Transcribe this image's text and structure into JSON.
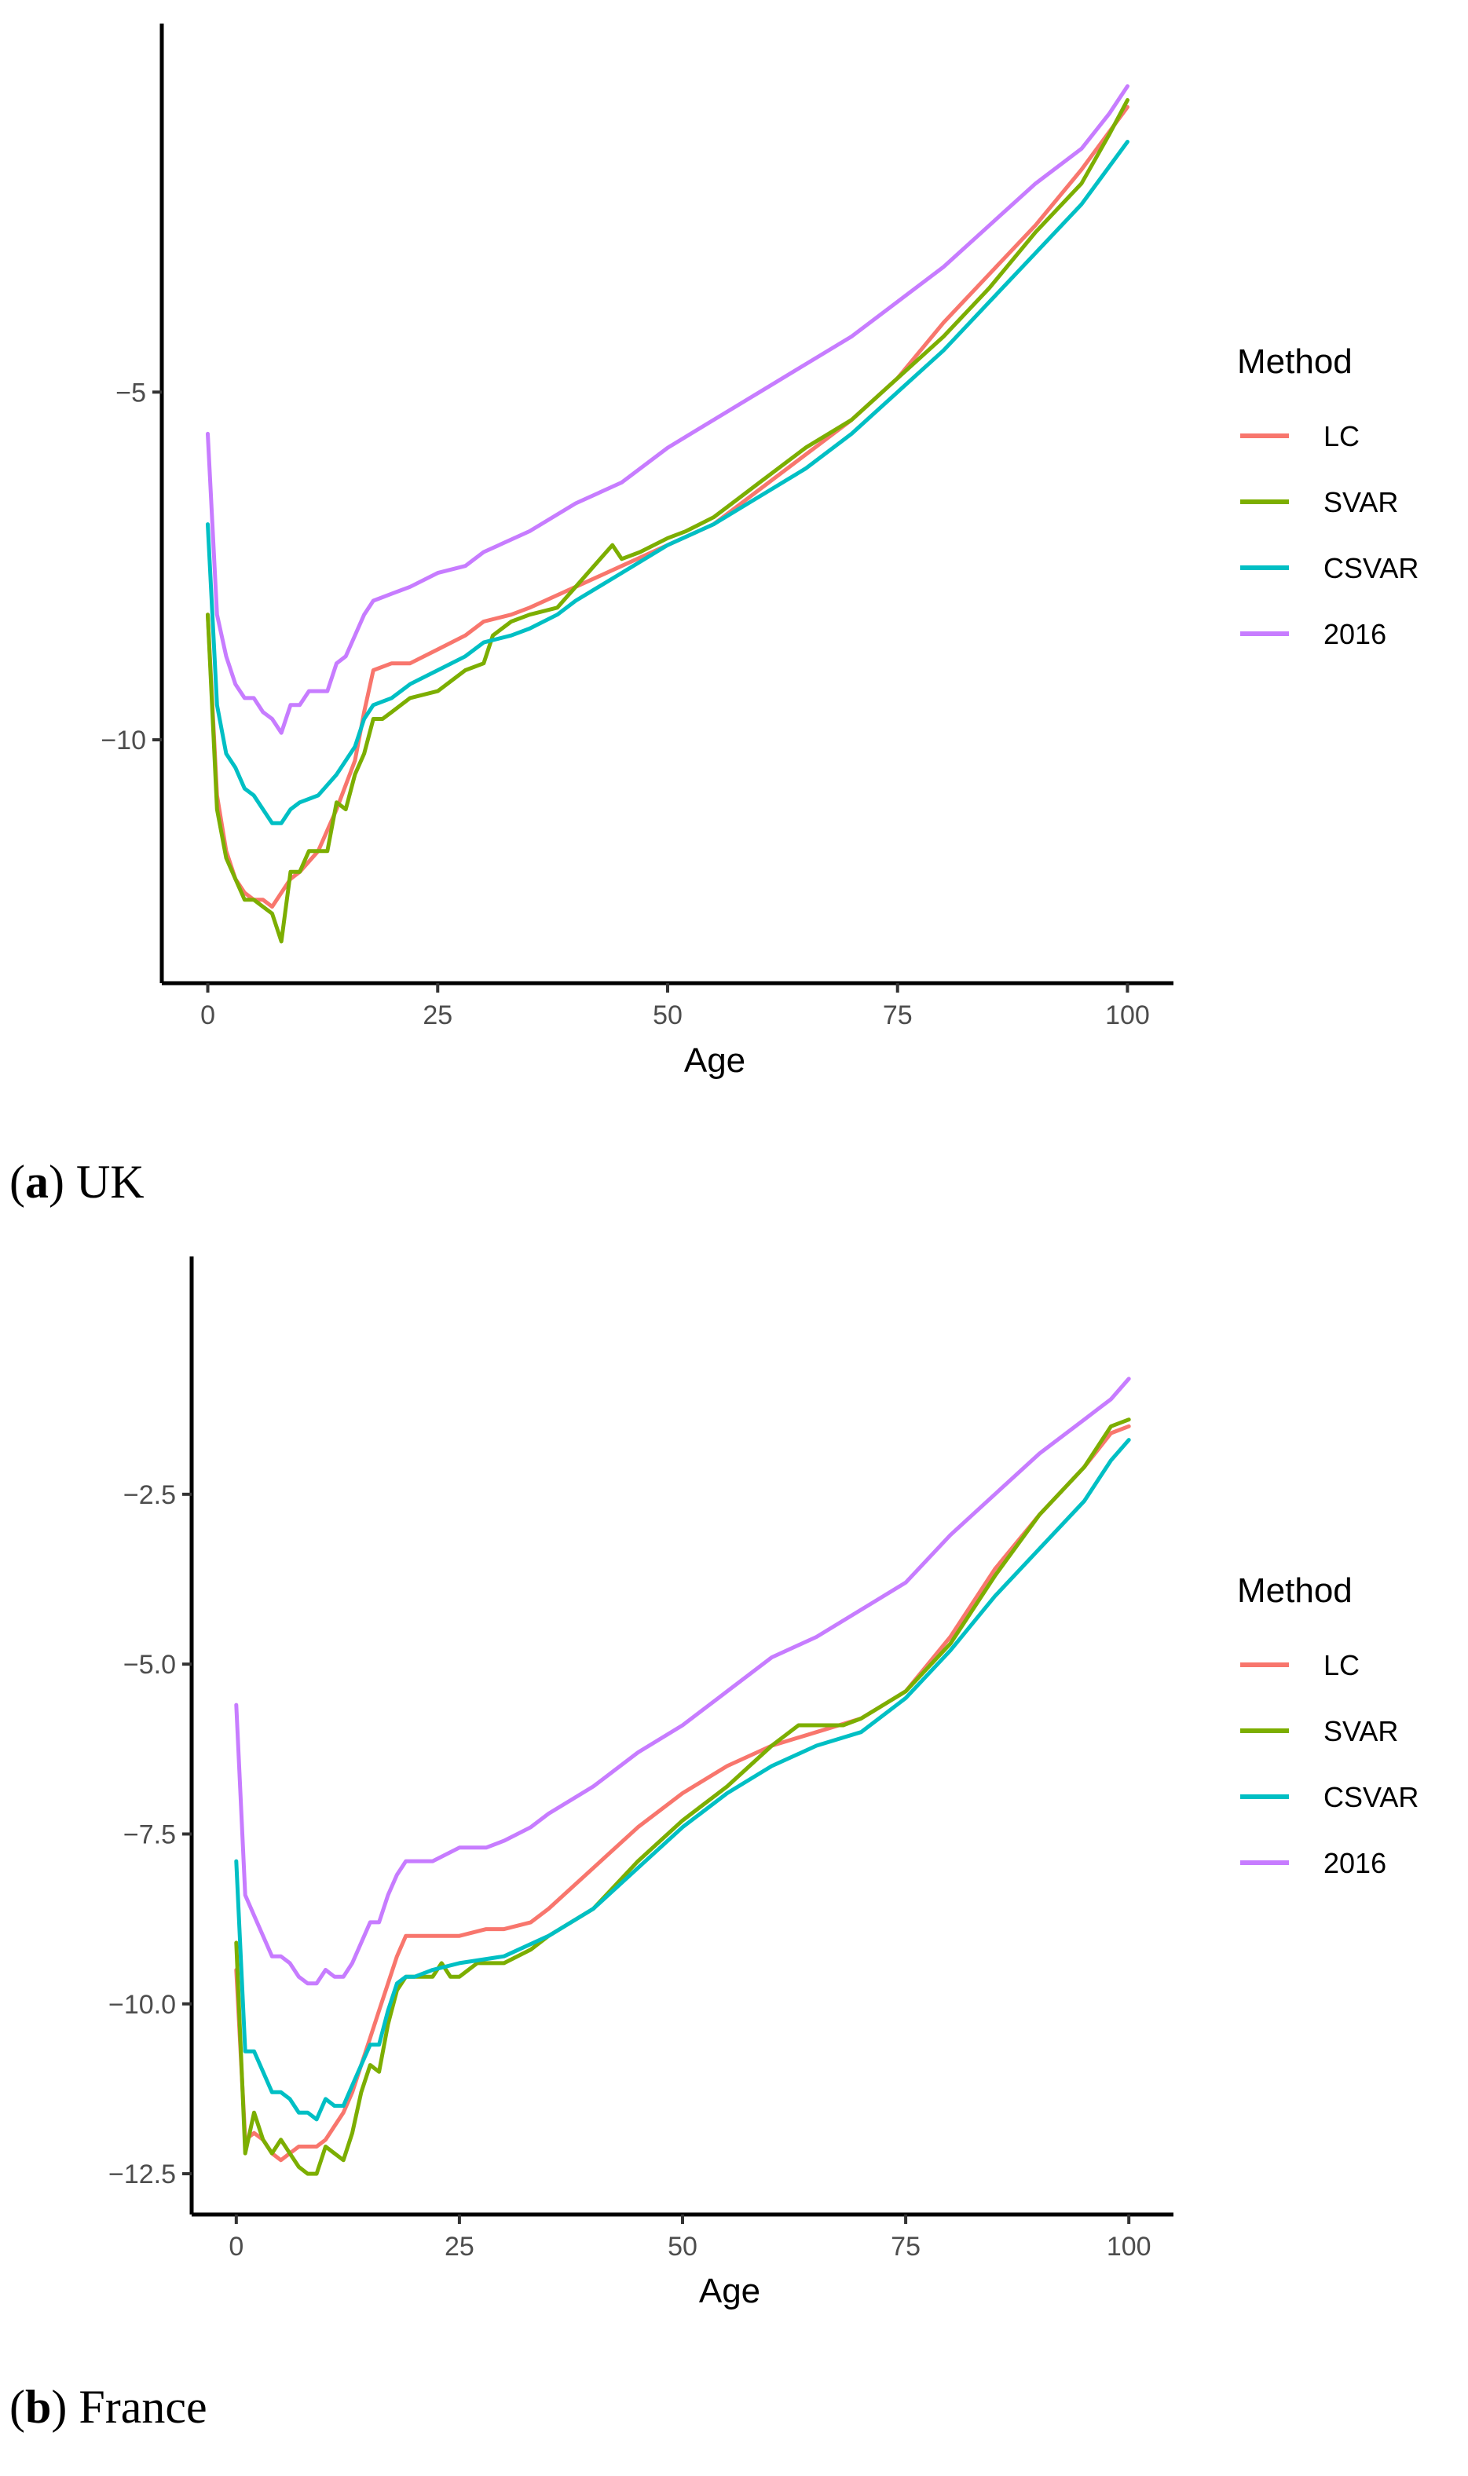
{
  "chart_data": [
    {
      "type": "line",
      "caption_letter": "a",
      "caption_text": "UK",
      "xlabel": "Age",
      "ylabel": "",
      "xlim": [
        -5,
        105
      ],
      "ylim": [
        -13.5,
        0.3
      ],
      "xticks": [
        0,
        25,
        50,
        75,
        100
      ],
      "xtick_labels": [
        "0",
        "25",
        "50",
        "75",
        "100"
      ],
      "yticks": [
        -5,
        -10
      ],
      "ytick_labels": [
        "−5",
        "−10"
      ],
      "grid": false,
      "legend_title": "Method",
      "legend_position": "right",
      "series": [
        {
          "name": "LC",
          "color": "#F8766D",
          "x": [
            0,
            1,
            2,
            3,
            4,
            5,
            6,
            7,
            8,
            9,
            10,
            12,
            14,
            16,
            17,
            18,
            20,
            22,
            25,
            28,
            30,
            33,
            35,
            40,
            45,
            50,
            55,
            60,
            65,
            70,
            75,
            80,
            85,
            90,
            95,
            100
          ],
          "y": [
            -8.2,
            -10.8,
            -11.6,
            -12.0,
            -12.2,
            -12.3,
            -12.3,
            -12.4,
            -12.2,
            -12.0,
            -11.9,
            -11.6,
            -11.0,
            -10.3,
            -9.6,
            -9.0,
            -8.9,
            -8.9,
            -8.7,
            -8.5,
            -8.3,
            -8.2,
            -8.1,
            -7.8,
            -7.5,
            -7.2,
            -6.9,
            -6.4,
            -5.9,
            -5.4,
            -4.8,
            -4.0,
            -3.3,
            -2.6,
            -1.8,
            -0.9
          ]
        },
        {
          "name": "SVAR",
          "color": "#7CAE00",
          "x": [
            0,
            1,
            2,
            3,
            4,
            5,
            6,
            7,
            8,
            9,
            10,
            11,
            12,
            13,
            14,
            15,
            16,
            17,
            18,
            19,
            20,
            22,
            25,
            28,
            30,
            31,
            33,
            35,
            38,
            40,
            42,
            44,
            45,
            47,
            50,
            52,
            55,
            57,
            60,
            65,
            70,
            75,
            80,
            85,
            90,
            95,
            98,
            100
          ],
          "y": [
            -8.2,
            -11.0,
            -11.7,
            -12.0,
            -12.3,
            -12.3,
            -12.4,
            -12.5,
            -12.9,
            -11.9,
            -11.9,
            -11.6,
            -11.6,
            -11.6,
            -10.9,
            -11.0,
            -10.5,
            -10.2,
            -9.7,
            -9.7,
            -9.6,
            -9.4,
            -9.3,
            -9.0,
            -8.9,
            -8.5,
            -8.3,
            -8.2,
            -8.1,
            -7.8,
            -7.5,
            -7.2,
            -7.4,
            -7.3,
            -7.1,
            -7.0,
            -6.8,
            -6.6,
            -6.3,
            -5.8,
            -5.4,
            -4.8,
            -4.2,
            -3.5,
            -2.7,
            -2.0,
            -1.3,
            -0.8
          ]
        },
        {
          "name": "CSVAR",
          "color": "#00BFC4",
          "x": [
            0,
            1,
            2,
            3,
            4,
            5,
            6,
            7,
            8,
            9,
            10,
            12,
            14,
            16,
            17,
            18,
            20,
            22,
            25,
            28,
            30,
            33,
            35,
            38,
            40,
            45,
            50,
            55,
            60,
            65,
            70,
            75,
            80,
            85,
            90,
            95,
            100
          ],
          "y": [
            -6.9,
            -9.5,
            -10.2,
            -10.4,
            -10.7,
            -10.8,
            -11.0,
            -11.2,
            -11.2,
            -11.0,
            -10.9,
            -10.8,
            -10.5,
            -10.1,
            -9.7,
            -9.5,
            -9.4,
            -9.2,
            -9.0,
            -8.8,
            -8.6,
            -8.5,
            -8.4,
            -8.2,
            -8.0,
            -7.6,
            -7.2,
            -6.9,
            -6.5,
            -6.1,
            -5.6,
            -5.0,
            -4.4,
            -3.7,
            -3.0,
            -2.3,
            -1.4
          ]
        },
        {
          "name": "2016",
          "color": "#C77CFF",
          "x": [
            0,
            1,
            2,
            3,
            4,
            5,
            6,
            7,
            8,
            9,
            10,
            11,
            12,
            13,
            14,
            15,
            16,
            17,
            18,
            20,
            22,
            25,
            28,
            30,
            35,
            40,
            45,
            50,
            55,
            60,
            65,
            70,
            75,
            80,
            85,
            90,
            95,
            98,
            100
          ],
          "y": [
            -5.6,
            -8.2,
            -8.8,
            -9.2,
            -9.4,
            -9.4,
            -9.6,
            -9.7,
            -9.9,
            -9.5,
            -9.5,
            -9.3,
            -9.3,
            -9.3,
            -8.9,
            -8.8,
            -8.5,
            -8.2,
            -8.0,
            -7.9,
            -7.8,
            -7.6,
            -7.5,
            -7.3,
            -7.0,
            -6.6,
            -6.3,
            -5.8,
            -5.4,
            -5.0,
            -4.6,
            -4.2,
            -3.7,
            -3.2,
            -2.6,
            -2.0,
            -1.5,
            -1.0,
            -0.6
          ]
        }
      ]
    },
    {
      "type": "line",
      "caption_letter": "b",
      "caption_text": "France",
      "xlabel": "Age",
      "ylabel": "",
      "xlim": [
        -5,
        105
      ],
      "ylim": [
        -13.1,
        1.0
      ],
      "xticks": [
        0,
        25,
        50,
        75,
        100
      ],
      "xtick_labels": [
        "0",
        "25",
        "50",
        "75",
        "100"
      ],
      "yticks": [
        -2.5,
        -5.0,
        -7.5,
        -10.0,
        -12.5
      ],
      "ytick_labels": [
        "−2.5",
        "−5.0",
        "−7.5",
        "−10.0",
        "−12.5"
      ],
      "grid": false,
      "legend_title": "Method",
      "legend_position": "right",
      "series": [
        {
          "name": "LC",
          "color": "#F8766D",
          "x": [
            0,
            1,
            2,
            3,
            4,
            5,
            6,
            7,
            8,
            9,
            10,
            11,
            12,
            13,
            14,
            15,
            16,
            17,
            18,
            19,
            20,
            22,
            25,
            28,
            30,
            33,
            35,
            40,
            45,
            50,
            55,
            60,
            65,
            70,
            75,
            80,
            85,
            90,
            95,
            98,
            100
          ],
          "y": [
            -9.5,
            -12.0,
            -11.9,
            -12.0,
            -12.2,
            -12.3,
            -12.2,
            -12.1,
            -12.1,
            -12.1,
            -12.0,
            -11.8,
            -11.6,
            -11.3,
            -10.9,
            -10.5,
            -10.1,
            -9.7,
            -9.3,
            -9.0,
            -9.0,
            -9.0,
            -9.0,
            -8.9,
            -8.9,
            -8.8,
            -8.6,
            -8.0,
            -7.4,
            -6.9,
            -6.5,
            -6.2,
            -6.0,
            -5.8,
            -5.4,
            -4.6,
            -3.6,
            -2.8,
            -2.1,
            -1.6,
            -1.5
          ]
        },
        {
          "name": "SVAR",
          "color": "#7CAE00",
          "x": [
            0,
            1,
            2,
            3,
            4,
            5,
            6,
            7,
            8,
            9,
            10,
            11,
            12,
            13,
            14,
            15,
            16,
            17,
            18,
            19,
            20,
            22,
            23,
            24,
            25,
            27,
            30,
            33,
            35,
            40,
            45,
            50,
            55,
            60,
            63,
            65,
            68,
            70,
            75,
            80,
            85,
            90,
            95,
            98,
            100
          ],
          "y": [
            -9.1,
            -12.2,
            -11.6,
            -12.0,
            -12.2,
            -12.0,
            -12.2,
            -12.4,
            -12.5,
            -12.5,
            -12.1,
            -12.2,
            -12.3,
            -11.9,
            -11.3,
            -10.9,
            -11.0,
            -10.3,
            -9.8,
            -9.6,
            -9.6,
            -9.6,
            -9.4,
            -9.6,
            -9.6,
            -9.4,
            -9.4,
            -9.2,
            -9.0,
            -8.6,
            -7.9,
            -7.3,
            -6.8,
            -6.2,
            -5.9,
            -5.9,
            -5.9,
            -5.8,
            -5.4,
            -4.7,
            -3.7,
            -2.8,
            -2.1,
            -1.5,
            -1.4
          ]
        },
        {
          "name": "CSVAR",
          "color": "#00BFC4",
          "x": [
            0,
            1,
            2,
            3,
            4,
            5,
            6,
            7,
            8,
            9,
            10,
            11,
            12,
            13,
            14,
            15,
            16,
            17,
            18,
            19,
            20,
            22,
            25,
            30,
            35,
            40,
            45,
            50,
            55,
            60,
            65,
            70,
            75,
            80,
            85,
            90,
            95,
            98,
            100
          ],
          "y": [
            -7.9,
            -10.7,
            -10.7,
            -11.0,
            -11.3,
            -11.3,
            -11.4,
            -11.6,
            -11.6,
            -11.7,
            -11.4,
            -11.5,
            -11.5,
            -11.2,
            -10.9,
            -10.6,
            -10.6,
            -10.1,
            -9.7,
            -9.6,
            -9.6,
            -9.5,
            -9.4,
            -9.3,
            -9.0,
            -8.6,
            -8.0,
            -7.4,
            -6.9,
            -6.5,
            -6.2,
            -6.0,
            -5.5,
            -4.8,
            -4.0,
            -3.3,
            -2.6,
            -2.0,
            -1.7
          ]
        },
        {
          "name": "2016",
          "color": "#C77CFF",
          "x": [
            0,
            1,
            2,
            3,
            4,
            5,
            6,
            7,
            8,
            9,
            10,
            11,
            12,
            13,
            14,
            15,
            16,
            17,
            18,
            19,
            20,
            22,
            25,
            28,
            30,
            33,
            35,
            40,
            45,
            50,
            55,
            60,
            65,
            70,
            75,
            80,
            85,
            90,
            95,
            98,
            100
          ],
          "y": [
            -5.6,
            -8.4,
            -8.7,
            -9.0,
            -9.3,
            -9.3,
            -9.4,
            -9.6,
            -9.7,
            -9.7,
            -9.5,
            -9.6,
            -9.6,
            -9.4,
            -9.1,
            -8.8,
            -8.8,
            -8.4,
            -8.1,
            -7.9,
            -7.9,
            -7.9,
            -7.7,
            -7.7,
            -7.6,
            -7.4,
            -7.2,
            -6.8,
            -6.3,
            -5.9,
            -5.4,
            -4.9,
            -4.6,
            -4.2,
            -3.8,
            -3.1,
            -2.5,
            -1.9,
            -1.4,
            -1.1,
            -0.8
          ]
        }
      ]
    }
  ]
}
